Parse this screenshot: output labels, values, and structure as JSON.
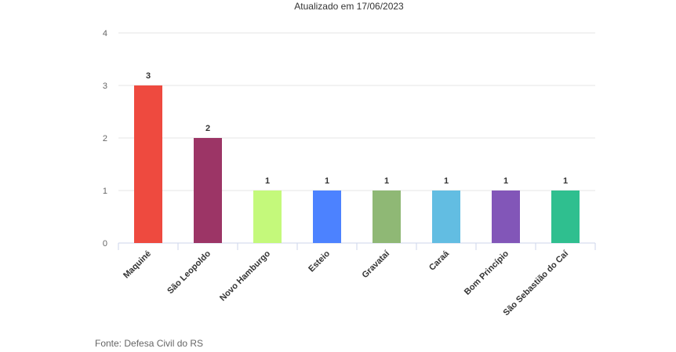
{
  "subtitle": "Atualizado em 17/06/2023",
  "source": "Fonte: Defesa Civil do RS",
  "chart_data": {
    "type": "bar",
    "title": "",
    "subtitle": "Atualizado em 17/06/2023",
    "xlabel": "",
    "ylabel": "",
    "ylim": [
      0,
      4
    ],
    "yticks": [
      0,
      1,
      2,
      3,
      4
    ],
    "grid": true,
    "legend": "none",
    "categories": [
      "Maquiné",
      "São Leopoldo",
      "Novo Hamburgo",
      "Esteio",
      "Gravataí",
      "Caraá",
      "Bom Princípio",
      "São Sebastião do Caí"
    ],
    "values": [
      3,
      2,
      1,
      1,
      1,
      1,
      1,
      1
    ],
    "colors": [
      "#EE4A3F",
      "#9C3566",
      "#C4F97B",
      "#4C82FF",
      "#8FB875",
      "#62BDE2",
      "#8256B8",
      "#2FBF8F"
    ]
  }
}
